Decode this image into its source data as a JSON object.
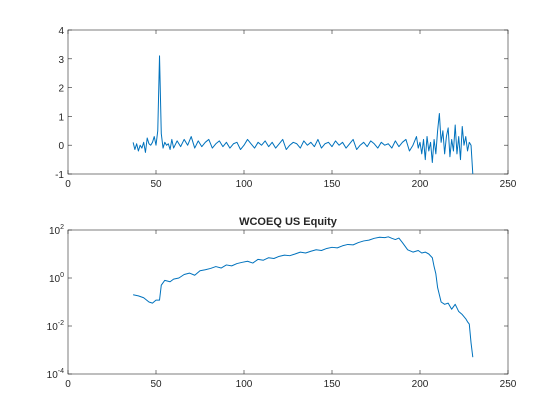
{
  "chart_data": [
    {
      "type": "line",
      "title": "",
      "xlabel": "",
      "ylabel": "",
      "xlim": [
        0,
        250
      ],
      "ylim": [
        -1,
        4
      ],
      "yscale": "linear",
      "xticks": [
        0,
        50,
        100,
        150,
        200,
        250
      ],
      "xtick_labels": [
        "0",
        "50",
        "100",
        "150",
        "200",
        "250"
      ],
      "yticks": [
        -1,
        0,
        1,
        2,
        3,
        4
      ],
      "ytick_labels": [
        "-1",
        "0",
        "1",
        "2",
        "3",
        "4"
      ],
      "grid": false,
      "series": [
        {
          "color": "#0072BD",
          "x": [
            37,
            38,
            39,
            40,
            41,
            42,
            43,
            44,
            45,
            46,
            47,
            48,
            49,
            50,
            51,
            52,
            53,
            54,
            55,
            56,
            57,
            58,
            59,
            60,
            62,
            64,
            66,
            68,
            70,
            72,
            74,
            76,
            78,
            80,
            82,
            84,
            86,
            88,
            90,
            92,
            94,
            96,
            98,
            100,
            102,
            104,
            106,
            108,
            110,
            112,
            114,
            116,
            118,
            120,
            122,
            124,
            126,
            128,
            130,
            132,
            134,
            136,
            138,
            140,
            142,
            144,
            146,
            148,
            150,
            152,
            154,
            156,
            158,
            160,
            162,
            164,
            166,
            168,
            170,
            172,
            174,
            176,
            178,
            180,
            182,
            184,
            186,
            188,
            190,
            192,
            194,
            196,
            198,
            199,
            200,
            201,
            202,
            203,
            204,
            205,
            206,
            207,
            208,
            209,
            210,
            211,
            212,
            213,
            214,
            215,
            216,
            217,
            218,
            219,
            220,
            221,
            222,
            223,
            224,
            225,
            226,
            227,
            228,
            229,
            230
          ],
          "y": [
            0.1,
            -0.15,
            0.05,
            -0.2,
            0.0,
            -0.1,
            0.1,
            -0.25,
            0.25,
            0.05,
            0.0,
            0.1,
            0.3,
            0.0,
            0.5,
            3.1,
            0.4,
            -0.1,
            0.1,
            0.0,
            0.05,
            -0.15,
            0.2,
            -0.1,
            0.15,
            -0.05,
            0.2,
            0.0,
            0.3,
            -0.1,
            0.15,
            -0.05,
            0.1,
            0.2,
            -0.1,
            0.05,
            0.15,
            -0.05,
            0.1,
            -0.1,
            0.05,
            0.1,
            -0.15,
            0.0,
            0.2,
            0.05,
            -0.1,
            0.1,
            0.0,
            0.15,
            -0.05,
            0.1,
            -0.1,
            0.05,
            0.2,
            -0.15,
            0.0,
            0.1,
            0.05,
            -0.1,
            0.15,
            0.0,
            0.1,
            -0.05,
            0.2,
            -0.1,
            0.05,
            0.1,
            -0.05,
            0.15,
            0.0,
            0.1,
            -0.1,
            0.05,
            0.2,
            -0.15,
            0.0,
            0.1,
            -0.05,
            0.15,
            0.05,
            -0.1,
            0.1,
            0.0,
            0.05,
            -0.1,
            0.15,
            -0.05,
            0.1,
            0.2,
            -0.2,
            0.0,
            0.3,
            -0.1,
            0.1,
            -0.3,
            0.2,
            -0.5,
            0.3,
            -0.2,
            0.1,
            -0.6,
            0.2,
            -0.3,
            0.5,
            1.1,
            0.1,
            0.5,
            -0.3,
            0.3,
            0.6,
            -0.4,
            0.2,
            -0.2,
            0.7,
            -0.3,
            0.3,
            -0.5,
            0.65,
            0.0,
            0.3,
            -0.2,
            0.1,
            0.0,
            -1.0
          ]
        }
      ]
    },
    {
      "type": "line",
      "title": "WCOEQ US Equity",
      "xlabel": "",
      "ylabel": "",
      "xlim": [
        0,
        250
      ],
      "ylim": [
        0.0001,
        100
      ],
      "yscale": "log",
      "xticks": [
        0,
        50,
        100,
        150,
        200,
        250
      ],
      "xtick_labels": [
        "0",
        "50",
        "100",
        "150",
        "200",
        "250"
      ],
      "yticks": [
        0.0001,
        0.01,
        1,
        100
      ],
      "ytick_labels": [
        {
          "base": "10",
          "exp": "-4"
        },
        {
          "base": "10",
          "exp": "-2"
        },
        {
          "base": "10",
          "exp": "0"
        },
        {
          "base": "10",
          "exp": "2"
        }
      ],
      "grid": false,
      "series": [
        {
          "color": "#0072BD",
          "x": [
            37,
            40,
            43,
            46,
            48,
            50,
            52,
            53,
            55,
            58,
            60,
            63,
            66,
            69,
            72,
            75,
            78,
            81,
            84,
            87,
            90,
            93,
            96,
            99,
            102,
            105,
            108,
            111,
            114,
            117,
            120,
            123,
            126,
            129,
            132,
            135,
            138,
            141,
            144,
            147,
            150,
            153,
            156,
            159,
            162,
            165,
            168,
            171,
            174,
            177,
            180,
            182,
            184,
            186,
            188,
            190,
            193,
            196,
            199,
            201,
            203,
            205,
            207,
            208,
            209,
            210,
            211,
            212,
            214,
            216,
            218,
            220,
            222,
            224,
            226,
            227,
            228,
            229,
            230
          ],
          "y": [
            0.2,
            0.18,
            0.15,
            0.1,
            0.09,
            0.12,
            0.12,
            0.5,
            0.8,
            0.7,
            0.9,
            1.0,
            1.4,
            1.6,
            1.3,
            2.0,
            2.2,
            2.5,
            3.0,
            2.6,
            3.5,
            3.2,
            4.0,
            4.5,
            5.0,
            4.2,
            6.0,
            5.5,
            7.0,
            6.5,
            8.0,
            9.0,
            8.5,
            10.0,
            12.0,
            11.0,
            13.0,
            15.0,
            14.0,
            17.0,
            19.0,
            18.0,
            22.0,
            25.0,
            24.0,
            30.0,
            35.0,
            38.0,
            45.0,
            50.0,
            48.0,
            52.0,
            45.0,
            40.0,
            46.0,
            30.0,
            15.0,
            12.0,
            14.0,
            11.0,
            12.0,
            10.0,
            7.0,
            3.0,
            1.5,
            0.4,
            0.2,
            0.1,
            0.08,
            0.09,
            0.05,
            0.08,
            0.04,
            0.03,
            0.02,
            0.015,
            0.012,
            0.002,
            0.0005
          ]
        }
      ]
    }
  ]
}
